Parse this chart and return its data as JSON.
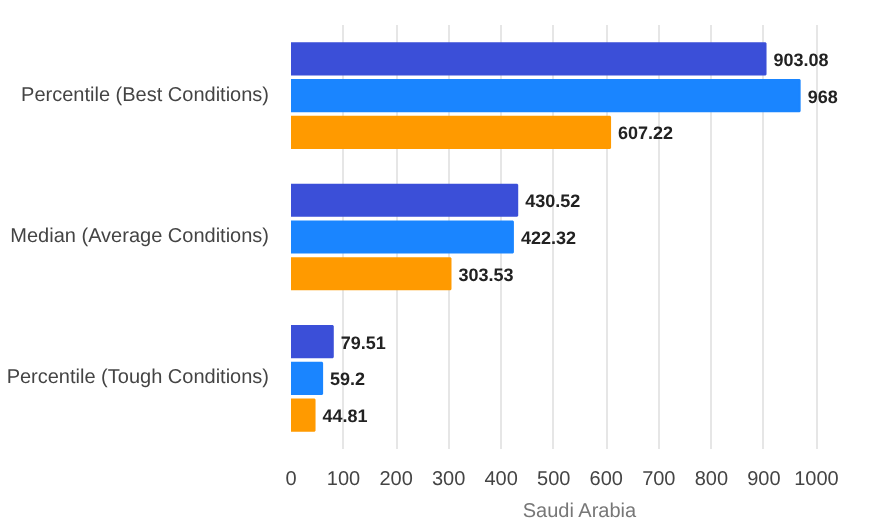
{
  "chart_data": {
    "type": "bar",
    "orientation": "horizontal",
    "categories": [
      "Percentile (Best Conditions)",
      "Median (Average Conditions)",
      "Percentile (Tough Conditions)"
    ],
    "series": [
      {
        "color": "#3b4fd8",
        "values": [
          903.08,
          430.52,
          79.51
        ]
      },
      {
        "color": "#1a85ff",
        "values": [
          968,
          422.32,
          59.2
        ]
      },
      {
        "color": "#ff9a00",
        "values": [
          607.22,
          303.53,
          44.81
        ]
      }
    ],
    "xlabel": "Saudi Arabia",
    "xlim": [
      0,
      1000
    ],
    "xticks": [
      0,
      100,
      200,
      300,
      400,
      500,
      600,
      700,
      800,
      900,
      1000
    ],
    "grid": "x",
    "data_labels": true
  }
}
